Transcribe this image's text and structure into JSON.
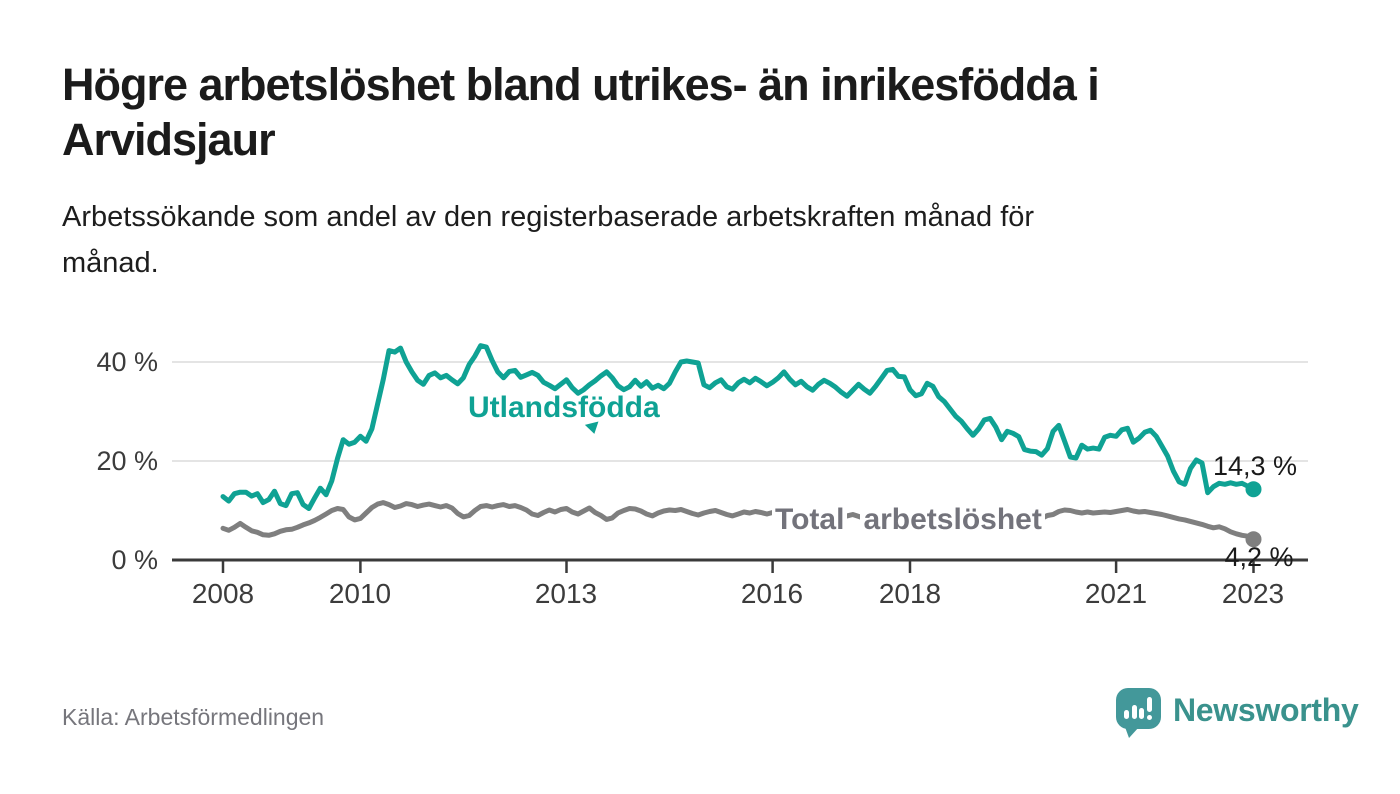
{
  "header": {
    "title": "Högre arbetslöshet bland utrikes- än inrikesfödda i Arvidsjaur",
    "title_lines": [
      "Högre arbetslöshet bland utrikes- än inrikesfödda i",
      "Arvidsjaur"
    ],
    "subtitle": "Arbetssökande som andel av den registerbaserade arbetskraften månad för månad.",
    "subtitle_lines": [
      "Arbetssökande som andel av den registerbaserade arbetskraften månad för",
      "månad."
    ]
  },
  "footer": {
    "source": "Källa: Arbetsförmedlingen",
    "logo_text": "Newsworthy",
    "logo_icon": "bar-chart-speech-bubble"
  },
  "colors": {
    "accent_teal": "#0fa294",
    "series_gray": "#7f7f7f",
    "gray_label": "#73737b",
    "axis": "#3a3a3a",
    "grid": "#dcdcdc",
    "end_label": "#1a1a1a",
    "logo_teal": "#43989a",
    "logo_text_teal": "#3a928d"
  },
  "chart_data": {
    "type": "line",
    "unit": "%",
    "frequency": "monthly",
    "x_start": "2008-01",
    "x_end": "2023-01",
    "x_tick_years": [
      2008,
      2010,
      2013,
      2016,
      2018,
      2021,
      2023
    ],
    "x_tick_labels": [
      "2008",
      "2010",
      "2013",
      "2016",
      "2018",
      "2021",
      "2023"
    ],
    "y_ticks": [
      0,
      20,
      40
    ],
    "y_tick_labels": [
      "0 %",
      "20 %",
      "40 %"
    ],
    "ylim": [
      0,
      45
    ],
    "grid": "horizontal",
    "legend_position": "inline-labels",
    "series": [
      {
        "id": "utlandsfodda",
        "name": "Utlandsfödda",
        "color": "#0fa294",
        "end_label": "14,3 %",
        "end_value": 14.3,
        "values": [
          12.8,
          11.9,
          13.4,
          13.7,
          13.7,
          12.9,
          13.4,
          11.6,
          12.2,
          13.9,
          11.4,
          11.0,
          13.4,
          13.6,
          11.2,
          10.4,
          12.5,
          14.5,
          13.2,
          16.0,
          20.5,
          24.3,
          23.4,
          23.8,
          25.0,
          24.0,
          26.5,
          31.5,
          36.5,
          42.3,
          42.0,
          42.8,
          40.0,
          38.0,
          36.3,
          35.5,
          37.3,
          37.8,
          36.8,
          37.3,
          36.4,
          35.6,
          36.8,
          39.5,
          41.2,
          43.3,
          43.0,
          40.3,
          38.0,
          36.8,
          38.1,
          38.3,
          36.9,
          37.4,
          37.9,
          37.3,
          35.9,
          35.3,
          34.6,
          35.5,
          36.4,
          34.8,
          33.7,
          34.4,
          35.4,
          36.2,
          37.2,
          38.0,
          36.8,
          35.2,
          34.4,
          35.0,
          36.3,
          35.1,
          36.0,
          34.7,
          35.3,
          34.6,
          35.7,
          38.0,
          40.0,
          40.2,
          40.0,
          39.8,
          35.4,
          34.8,
          35.8,
          36.4,
          35.0,
          34.5,
          35.8,
          36.5,
          35.8,
          36.7,
          36.0,
          35.2,
          35.9,
          36.8,
          38.0,
          36.5,
          35.4,
          36.1,
          35.0,
          34.3,
          35.5,
          36.3,
          35.7,
          34.9,
          33.9,
          33.1,
          34.3,
          35.5,
          34.5,
          33.7,
          35.1,
          36.7,
          38.3,
          38.5,
          37.1,
          37.0,
          34.4,
          33.2,
          33.6,
          35.7,
          35.1,
          33.0,
          32.0,
          30.5,
          29.0,
          28.0,
          26.5,
          25.2,
          26.5,
          28.3,
          28.6,
          26.8,
          24.3,
          26.0,
          25.6,
          24.9,
          22.3,
          22.0,
          21.9,
          21.2,
          22.5,
          26.0,
          27.2,
          24.0,
          20.8,
          20.6,
          23.2,
          22.4,
          22.6,
          22.4,
          24.8,
          25.2,
          25.0,
          26.3,
          26.6,
          23.8,
          24.6,
          25.8,
          26.2,
          25.0,
          23.0,
          21.0,
          18.0,
          15.8,
          15.3,
          18.5,
          20.2,
          19.6,
          13.6,
          14.8,
          15.5,
          15.3,
          15.6,
          15.3,
          15.5,
          14.9,
          14.3
        ]
      },
      {
        "id": "total",
        "name": "Total arbetslöshet",
        "name_display": [
          "Total",
          "arbetslöshet"
        ],
        "color": "#7f7f7f",
        "end_label": "4,2 %",
        "end_value": 4.2,
        "values": [
          6.4,
          6.0,
          6.6,
          7.4,
          6.6,
          5.9,
          5.6,
          5.1,
          5.0,
          5.3,
          5.8,
          6.1,
          6.2,
          6.6,
          7.1,
          7.5,
          8.0,
          8.6,
          9.3,
          10.0,
          10.4,
          10.2,
          8.7,
          8.1,
          8.4,
          9.5,
          10.6,
          11.3,
          11.6,
          11.2,
          10.6,
          10.9,
          11.4,
          11.2,
          10.8,
          11.1,
          11.3,
          11.0,
          10.7,
          11.0,
          10.5,
          9.4,
          8.7,
          9.0,
          10.0,
          10.8,
          11.0,
          10.7,
          11.0,
          11.2,
          10.8,
          11.0,
          10.6,
          10.1,
          9.3,
          9.0,
          9.6,
          10.1,
          9.7,
          10.2,
          10.4,
          9.7,
          9.3,
          9.9,
          10.5,
          9.6,
          9.0,
          8.2,
          8.5,
          9.5,
          10.0,
          10.4,
          10.3,
          9.9,
          9.3,
          8.9,
          9.5,
          9.9,
          10.1,
          10.0,
          10.2,
          9.8,
          9.4,
          9.1,
          9.5,
          9.8,
          10.0,
          9.6,
          9.2,
          8.9,
          9.3,
          9.7,
          9.5,
          9.8,
          9.6,
          9.3,
          9.6,
          9.9,
          9.7,
          9.3,
          8.9,
          9.2,
          8.8,
          8.5,
          8.9,
          9.3,
          9.1,
          8.8,
          8.6,
          8.9,
          9.2,
          8.8,
          8.4,
          8.7,
          8.3,
          8.6,
          8.9,
          8.7,
          8.4,
          8.6,
          8.2,
          8.5,
          8.7,
          8.3,
          7.9,
          8.2,
          7.8,
          7.5,
          7.8,
          8.1,
          7.9,
          8.2,
          8.0,
          8.3,
          8.1,
          7.8,
          7.5,
          7.8,
          7.4,
          7.2,
          7.5,
          7.8,
          8.1,
          8.4,
          9.0,
          9.2,
          9.8,
          10.1,
          10.0,
          9.7,
          9.5,
          9.7,
          9.5,
          9.6,
          9.7,
          9.6,
          9.8,
          10.0,
          10.2,
          9.9,
          9.7,
          9.8,
          9.6,
          9.4,
          9.2,
          8.9,
          8.6,
          8.3,
          8.1,
          7.8,
          7.5,
          7.2,
          6.8,
          6.5,
          6.7,
          6.3,
          5.7,
          5.3,
          5.0,
          4.8,
          4.2
        ]
      }
    ]
  }
}
